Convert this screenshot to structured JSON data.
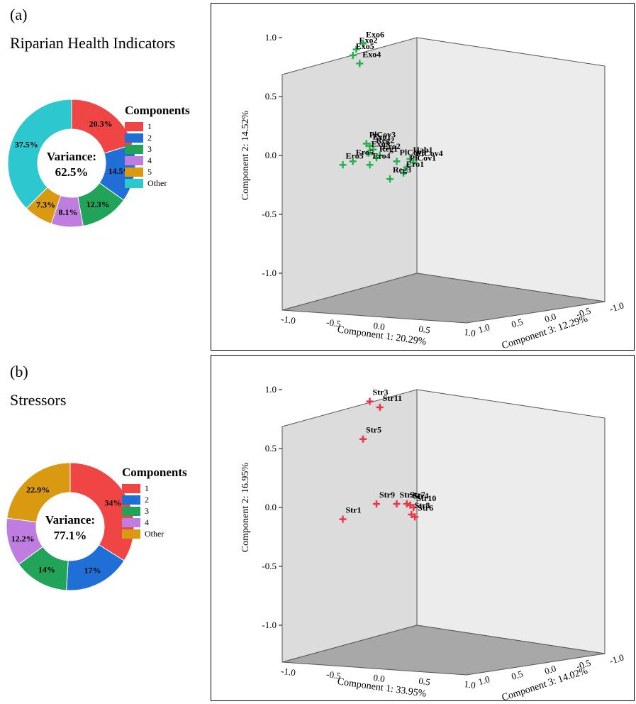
{
  "panels": [
    {
      "letter": "(a)",
      "title": "Riparian Health Indicators",
      "donut": {
        "center_lines": [
          "Variance:",
          "62.5%"
        ],
        "legend_title": "Components"
      },
      "plot3d": {
        "type": "scatter",
        "marker_color": "#22b24c",
        "axis1_label": "Component 1: 20.29%",
        "axis2_label": "Component 2: 14.52%",
        "axis3_label": "Component 3: 12.29%"
      }
    },
    {
      "letter": "(b)",
      "title": "Stressors",
      "donut": {
        "center_lines": [
          "Variance:",
          "77.1%"
        ],
        "legend_title": "Components"
      },
      "plot3d": {
        "type": "scatter",
        "marker_color": "#ee3344",
        "axis1_label": "Component 1: 33.95%",
        "axis2_label": "Component 2: 16.95%",
        "axis3_label": "Component 3: 14.02%"
      }
    }
  ],
  "chart_data": [
    {
      "type": "pie",
      "title": "",
      "categories": [
        "1",
        "2",
        "3",
        "4",
        "5",
        "Other"
      ],
      "values": [
        20.3,
        14.5,
        12.3,
        8.1,
        7.3,
        37.5
      ],
      "value_labels": [
        "20.3%",
        "14.5%",
        "12.3%",
        "8.1%",
        "7.3%",
        "37.5%"
      ],
      "colors": [
        "#f04545",
        "#1f6fd6",
        "#22a35a",
        "#c07de0",
        "#d99a12",
        "#2cc7cf"
      ]
    },
    {
      "type": "scatter",
      "title": "",
      "xlabel": "Component 1: 20.29%",
      "ylabel": "Component 2: 14.52%",
      "zlabel": "Component 3: 12.29%",
      "xlim": [
        -1.0,
        1.0
      ],
      "ylim": [
        -1.0,
        1.0
      ],
      "zlim": [
        -1.0,
        1.0
      ],
      "xticks": [
        "-1.0",
        "-0.5",
        "0.0",
        "0.5",
        "1.0"
      ],
      "yticks": [
        "-1.0",
        "-0.5",
        "0.0",
        "0.5",
        "1.0"
      ],
      "zticks": [
        "1.0",
        "0.5",
        "0.0",
        "-0.5",
        "-1.0"
      ],
      "x": [
        0.1,
        0.2,
        0.05,
        0.15,
        0.25,
        0.3,
        0.35,
        0.28,
        0.45,
        0.4,
        0.7,
        0.9,
        0.95,
        0.85,
        0.8,
        -0.1,
        0.05,
        0.3,
        0.6
      ],
      "y": [
        0.9,
        0.95,
        0.85,
        0.78,
        0.1,
        0.08,
        0.05,
        0.02,
        0.0,
        -0.02,
        -0.05,
        -0.03,
        -0.06,
        -0.1,
        -0.15,
        -0.08,
        -0.05,
        -0.08,
        -0.2
      ],
      "labels": [
        "Exo2",
        "Exo6",
        "Exo5",
        "Exo4",
        "PlCov3",
        "Exo1",
        "Reg2",
        "Exo3",
        "Ero2",
        "Reg1",
        "PlCov8",
        "Hab1",
        "PlCov4",
        "PlCov1",
        "Ero1",
        "Ero3",
        "Ero5",
        "Ero4",
        "Reg3"
      ]
    },
    {
      "type": "pie",
      "title": "",
      "categories": [
        "1",
        "2",
        "3",
        "4",
        "Other"
      ],
      "values": [
        34,
        17,
        14,
        12.2,
        22.9
      ],
      "value_labels": [
        "34%",
        "17%",
        "14%",
        "12.2%",
        "22.9%"
      ],
      "colors": [
        "#f04545",
        "#1f6fd6",
        "#22a35a",
        "#c07de0",
        "#d99a12"
      ]
    },
    {
      "type": "scatter",
      "title": "",
      "xlabel": "Component 1: 33.95%",
      "ylabel": "Component 2: 16.95%",
      "zlabel": "Component 3: 14.02%",
      "xlim": [
        -1.0,
        1.0
      ],
      "ylim": [
        -1.0,
        1.0
      ],
      "zlim": [
        -1.0,
        1.0
      ],
      "xticks": [
        "-1.0",
        "-0.5",
        "0.0",
        "0.5",
        "1.0"
      ],
      "yticks": [
        "-1.0",
        "-0.5",
        "0.0",
        "0.5",
        "1.0"
      ],
      "zticks": [
        "1.0",
        "0.5",
        "0.0",
        "-0.5",
        "-1.0"
      ],
      "x": [
        0.3,
        0.45,
        0.2,
        -0.1,
        0.4,
        0.7,
        0.85,
        0.9,
        0.95,
        0.92,
        0.97
      ],
      "y": [
        0.9,
        0.85,
        0.58,
        -0.1,
        0.03,
        0.03,
        0.03,
        0.02,
        0.0,
        -0.06,
        -0.08
      ],
      "labels": [
        "Str3",
        "Str11",
        "Str5",
        "Str1",
        "Str9",
        "Str2",
        "Str7",
        "Str4",
        "Str10",
        "Str8",
        "Str6"
      ]
    }
  ]
}
